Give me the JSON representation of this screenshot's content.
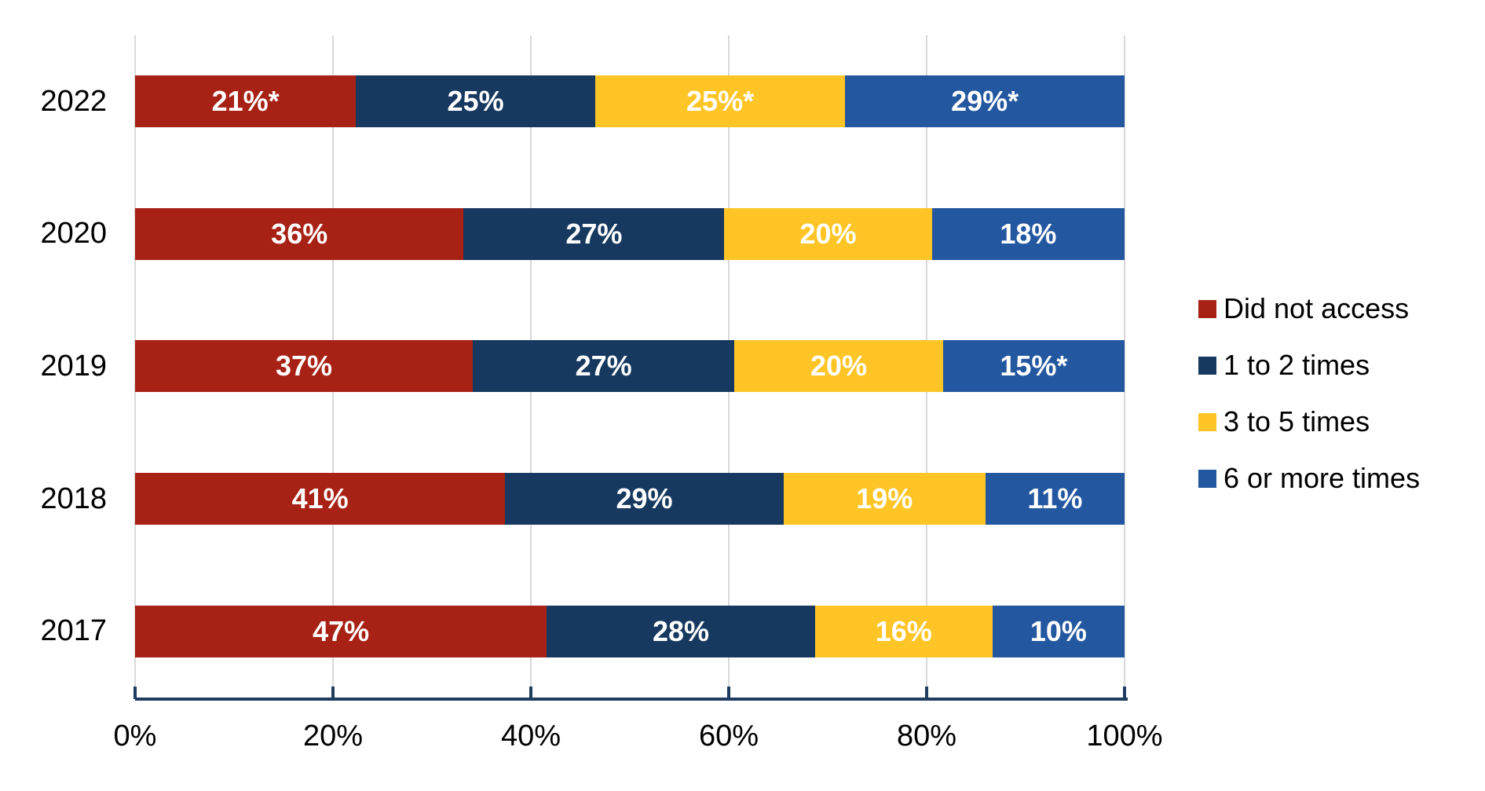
{
  "chart_data": {
    "type": "bar",
    "orientation": "horizontal",
    "stacked": true,
    "unit": "percent",
    "categories": [
      "2022",
      "2020",
      "2019",
      "2018",
      "2017"
    ],
    "series": [
      {
        "name": "Did not access",
        "color": "#A72115",
        "values": [
          21,
          36,
          37,
          41,
          47
        ],
        "labels": [
          "21%*",
          "36%",
          "37%",
          "41%",
          "47%"
        ]
      },
      {
        "name": "1 to 2 times",
        "color": "#17395F",
        "values": [
          25,
          27,
          27,
          29,
          28
        ],
        "labels": [
          "25%",
          "27%",
          "27%",
          "29%",
          "28%"
        ]
      },
      {
        "name": "3 to 5 times",
        "color": "#FFC527",
        "values": [
          25,
          20,
          20,
          19,
          16
        ],
        "labels": [
          "25%*",
          "20%",
          "20%",
          "19%",
          "16%"
        ]
      },
      {
        "name": "6 or more times",
        "color": "#2357A0",
        "values": [
          29,
          18,
          15,
          11,
          10
        ],
        "labels": [
          "29%*",
          "18%",
          "15%*",
          "11%",
          "10%"
        ]
      }
    ],
    "x_ticks": [
      "0%",
      "20%",
      "40%",
      "60%",
      "80%",
      "100%"
    ],
    "xlim": [
      0,
      100
    ],
    "grid": true,
    "legend_position": "right",
    "colors": {
      "gridline": "#D9D9D9",
      "axis_line": "#1F3C61",
      "bar_label_text": "#FFFFFF",
      "axis_text": "#000000",
      "background": "#FFFFFF"
    }
  }
}
